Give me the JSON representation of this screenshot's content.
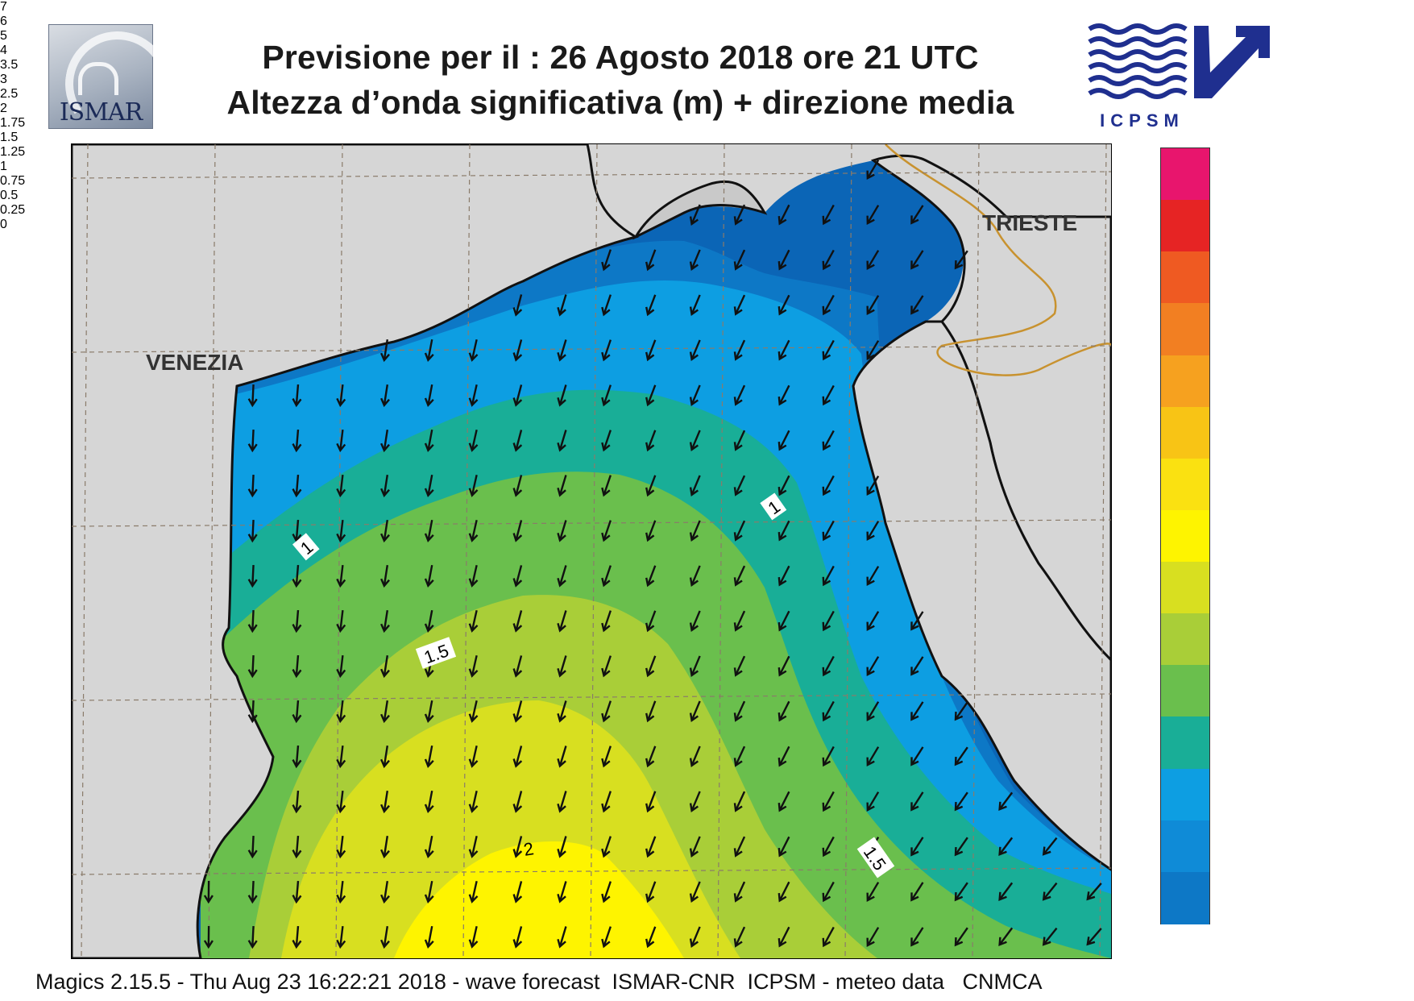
{
  "header": {
    "title_line1": "Previsione per il  :  26   Agosto  2018   ore 21 UTC",
    "title_line2": "Altezza d’onda significativa (m) + direzione media",
    "logo_left_text": "ISMAR",
    "logo_right_text": "ICPSM"
  },
  "map": {
    "place_labels": {
      "venezia": "VENEZIA",
      "trieste": "TRIESTE"
    },
    "contour_labels": {
      "label_1_west": "1",
      "label_1_east": "1",
      "label_1_5_west": "1.5",
      "label_1_5_east": "1.5",
      "label_2": "2"
    },
    "land_color": "#d6d6d6",
    "coast_color": "#111111",
    "border_color": "#c8922f",
    "arrow_icon": "wave-direction-arrow-icon",
    "mean_direction": "towards south-south-west"
  },
  "legend": {
    "ticks": [
      "7",
      "6",
      "5",
      "4",
      "3.5",
      "3",
      "2.5",
      "2",
      "1.75",
      "1.5",
      "1.25",
      "1",
      "0.75",
      "0.5",
      "0.25",
      "0"
    ],
    "colors": [
      "#e8156d",
      "#e62424",
      "#ef5a22",
      "#f27f22",
      "#f6a11f",
      "#f8c415",
      "#fae111",
      "#fef400",
      "#d8df20",
      "#a9ce38",
      "#6abf4d",
      "#19ae97",
      "#0d9ee2",
      "#0f8bd7",
      "#0d78c6",
      "#0b65b6"
    ]
  },
  "footer": {
    "text": "Magics 2.15.5 - Thu Aug 23 16:22:21 2018 - wave forecast  ISMAR-CNR  ICPSM - meteo data   CNMCA"
  }
}
